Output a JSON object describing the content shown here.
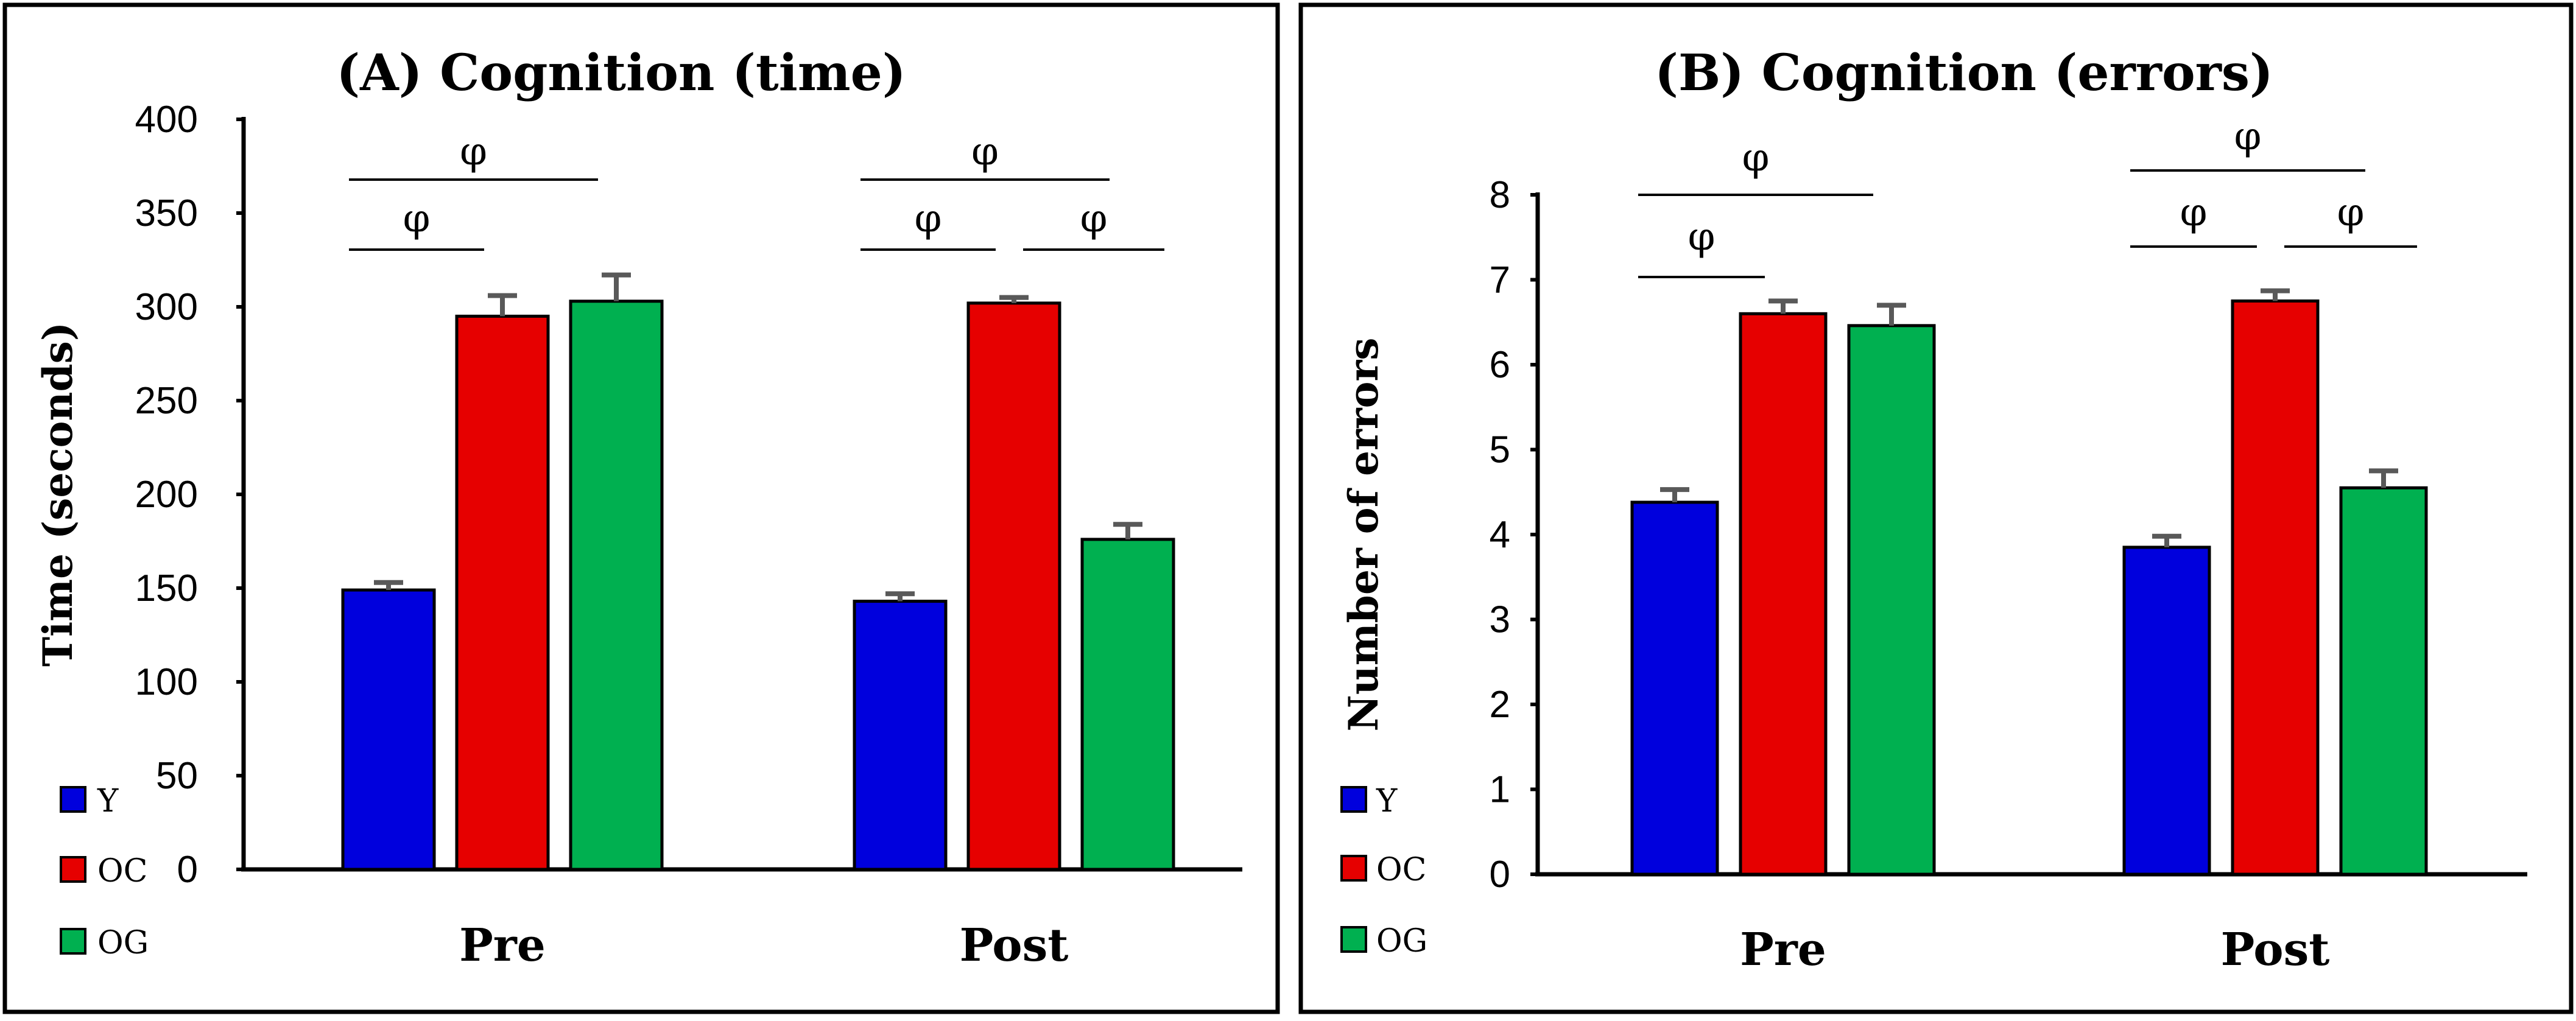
{
  "colors": {
    "Y": "#0000dd",
    "OC": "#e60000",
    "OG": "#00b050",
    "error_bar": "#595959"
  },
  "legend": [
    "Y",
    "OC",
    "OG"
  ],
  "chart_data": [
    {
      "type": "bar",
      "title": "(A) Cognition (time)",
      "ylabel": "Time (seconds)",
      "xlabel": "",
      "categories": [
        "Pre",
        "Post"
      ],
      "ylim": [
        0,
        400
      ],
      "yticks": [
        0,
        50,
        100,
        150,
        200,
        250,
        300,
        350,
        400
      ],
      "series": [
        {
          "name": "Y",
          "values": [
            149,
            143
          ],
          "errors": [
            4,
            4
          ]
        },
        {
          "name": "OC",
          "values": [
            295,
            302
          ],
          "errors": [
            11,
            3
          ]
        },
        {
          "name": "OG",
          "values": [
            303,
            176
          ],
          "errors": [
            14,
            8
          ]
        }
      ],
      "significance": [
        {
          "category": "Pre",
          "from": "Y",
          "to": "OC",
          "label": "φ"
        },
        {
          "category": "Pre",
          "from": "Y",
          "to": "OG",
          "label": "φ"
        },
        {
          "category": "Post",
          "from": "Y",
          "to": "OC",
          "label": "φ"
        },
        {
          "category": "Post",
          "from": "OC",
          "to": "OG",
          "label": "φ"
        },
        {
          "category": "Post",
          "from": "Y",
          "to": "OG",
          "label": "φ"
        }
      ]
    },
    {
      "type": "bar",
      "title": "(B) Cognition (errors)",
      "ylabel": "Number of errors",
      "xlabel": "",
      "categories": [
        "Pre",
        "Post"
      ],
      "ylim": [
        0,
        8
      ],
      "yticks": [
        0,
        1,
        2,
        3,
        4,
        5,
        6,
        7,
        8
      ],
      "series": [
        {
          "name": "Y",
          "values": [
            4.38,
            3.85
          ],
          "errors": [
            0.15,
            0.13
          ]
        },
        {
          "name": "OC",
          "values": [
            6.6,
            6.75
          ],
          "errors": [
            0.15,
            0.12
          ]
        },
        {
          "name": "OG",
          "values": [
            6.46,
            4.55
          ],
          "errors": [
            0.24,
            0.2
          ]
        }
      ],
      "significance": [
        {
          "category": "Pre",
          "from": "Y",
          "to": "OC",
          "label": "φ"
        },
        {
          "category": "Pre",
          "from": "Y",
          "to": "OG",
          "label": "φ"
        },
        {
          "category": "Post",
          "from": "Y",
          "to": "OC",
          "label": "φ"
        },
        {
          "category": "Post",
          "from": "OC",
          "to": "OG",
          "label": "φ"
        },
        {
          "category": "Post",
          "from": "Y",
          "to": "OG",
          "label": "φ"
        }
      ]
    }
  ]
}
